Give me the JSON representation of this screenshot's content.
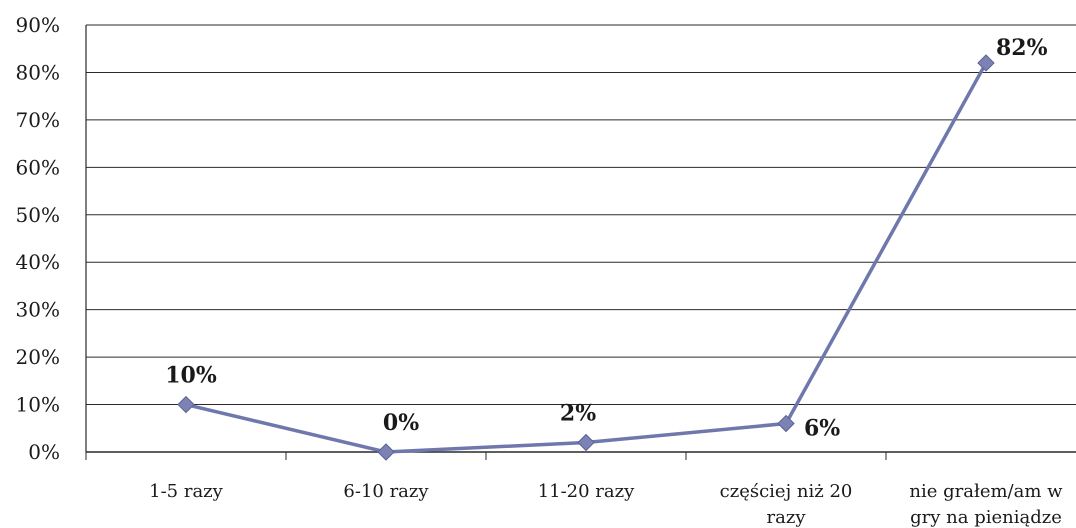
{
  "chart_data": {
    "type": "line",
    "title": "",
    "xlabel": "",
    "ylabel": "",
    "ylim": [
      0,
      90
    ],
    "y_ticks": [
      "0%",
      "10%",
      "20%",
      "30%",
      "40%",
      "50%",
      "60%",
      "70%",
      "80%",
      "90%"
    ],
    "grid": true,
    "legend": "none",
    "categories": [
      [
        "1-5 razy"
      ],
      [
        "6-10 razy"
      ],
      [
        "11-20 razy"
      ],
      [
        "częściej niż 20",
        "razy"
      ],
      [
        "nie grałem/am w",
        "gry na pieniądze"
      ]
    ],
    "series": [
      {
        "values": [
          10,
          0,
          2,
          6,
          82
        ],
        "labels": [
          "10%",
          "0%",
          "2%",
          "6%",
          "82%"
        ]
      }
    ],
    "colors": {
      "line": "#6e78ad",
      "marker": "#7c83b4",
      "grid": "#2a2a2a",
      "axis": "#2a2a2a"
    }
  }
}
